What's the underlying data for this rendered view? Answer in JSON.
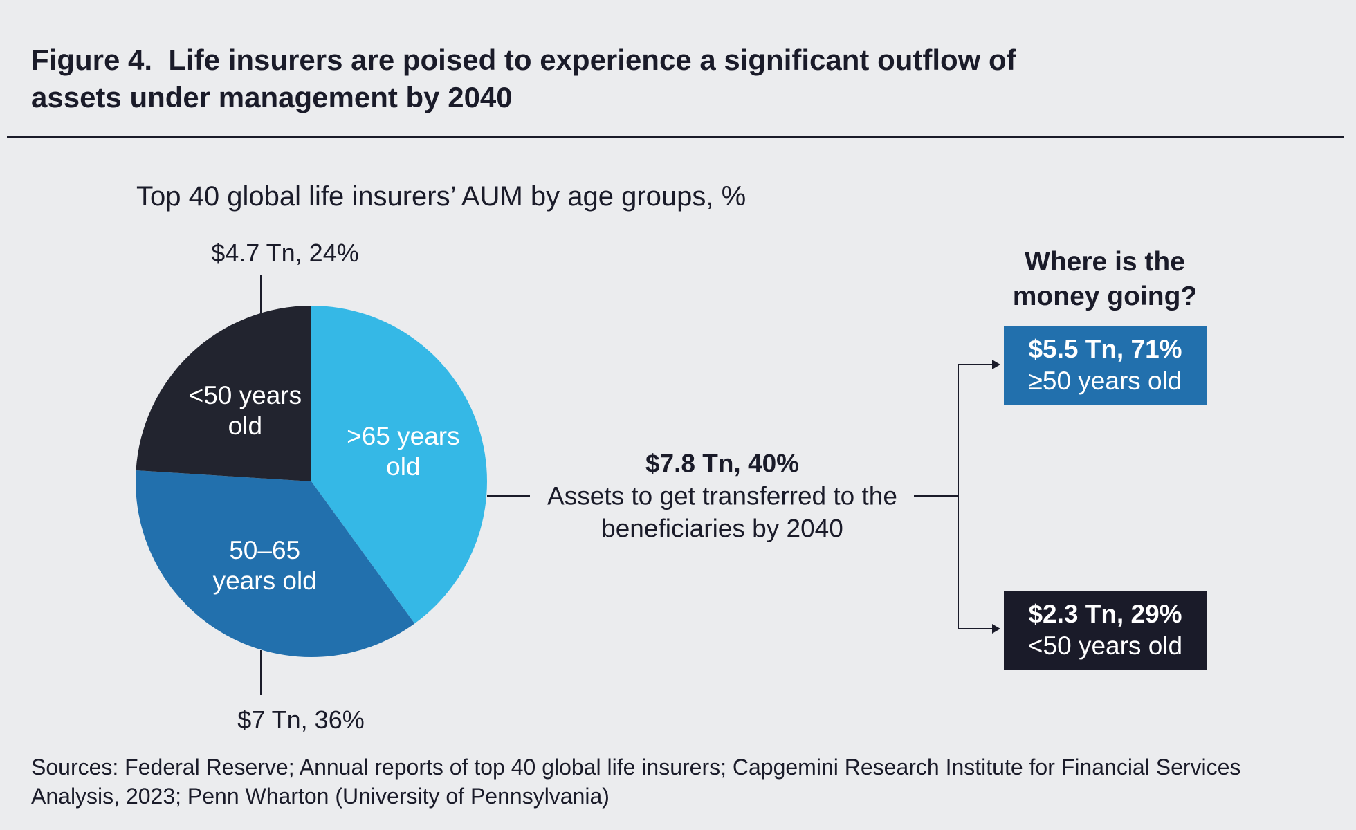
{
  "figure_label": "Figure 4.",
  "title": "Life insurers are poised to experience a significant outflow of assets under management by 2040",
  "chart_data": {
    "type": "pie",
    "subtitle": "Top 40 global life insurers’ AUM by age groups, %",
    "categories": [
      ">65 years old",
      "50–65 years old",
      "<50 years old"
    ],
    "values": [
      40,
      36,
      24
    ],
    "value_labels": [
      "$7.8 Tn, 40%",
      "$7 Tn, 36%",
      "$4.7 Tn, 24%"
    ],
    "colors": [
      "#35b8e6",
      "#2270ad",
      "#22242f"
    ],
    "annotation": "Assets to get transferred to the beneficiaries by 2040"
  },
  "breakdown": {
    "title": "Where is the money going?",
    "items": [
      {
        "value_label": "$5.5 Tn, 71%",
        "label": "≥50 years old",
        "color": "#2270ad"
      },
      {
        "value_label": "$2.3 Tn, 29%",
        "label": "<50 years old",
        "color": "#1a1b29"
      }
    ]
  },
  "source": "Sources: Federal Reserve; Annual reports of top 40 global life insurers; Capgemini Research Institute for Financial Services Analysis, 2023; Penn Wharton (University of Pennsylvania)"
}
